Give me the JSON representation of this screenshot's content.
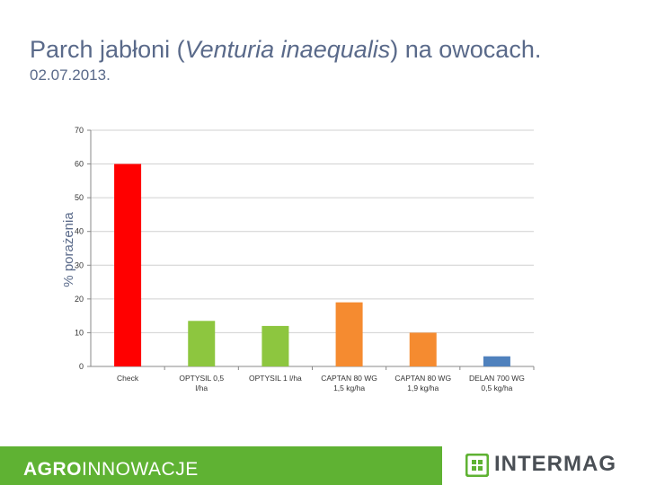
{
  "header": {
    "title_prefix": "Parch jabłoni (",
    "title_latin": "Venturia inaequalis",
    "title_suffix": ") na owocach.",
    "date": "02.07.2013."
  },
  "chart_data": {
    "type": "bar",
    "title": "",
    "ylabel": "% porażenia",
    "xlabel": "",
    "ylim": [
      0,
      70
    ],
    "yticks": [
      0,
      10,
      20,
      30,
      40,
      50,
      60,
      70
    ],
    "grid": true,
    "categories": [
      "Check",
      "OPTYSIL 0,5 l/ha",
      "OPTYSIL 1 l/ha",
      "CAPTAN 80 WG 1,5 kg/ha",
      "CAPTAN 80 WG 1,9 kg/ha",
      "DELAN 700 WG 0,5 kg/ha"
    ],
    "values": [
      60,
      13.5,
      12,
      19,
      10,
      3
    ],
    "colors": [
      "#ff0000",
      "#8dc63f",
      "#8dc63f",
      "#f58b30",
      "#f58b30",
      "#4f81bd"
    ]
  },
  "footer": {
    "brand_bold": "AGRO",
    "brand_rest": "INNOWACJE",
    "logo_text": "INTERMAG",
    "bar_color": "#5fb233"
  }
}
